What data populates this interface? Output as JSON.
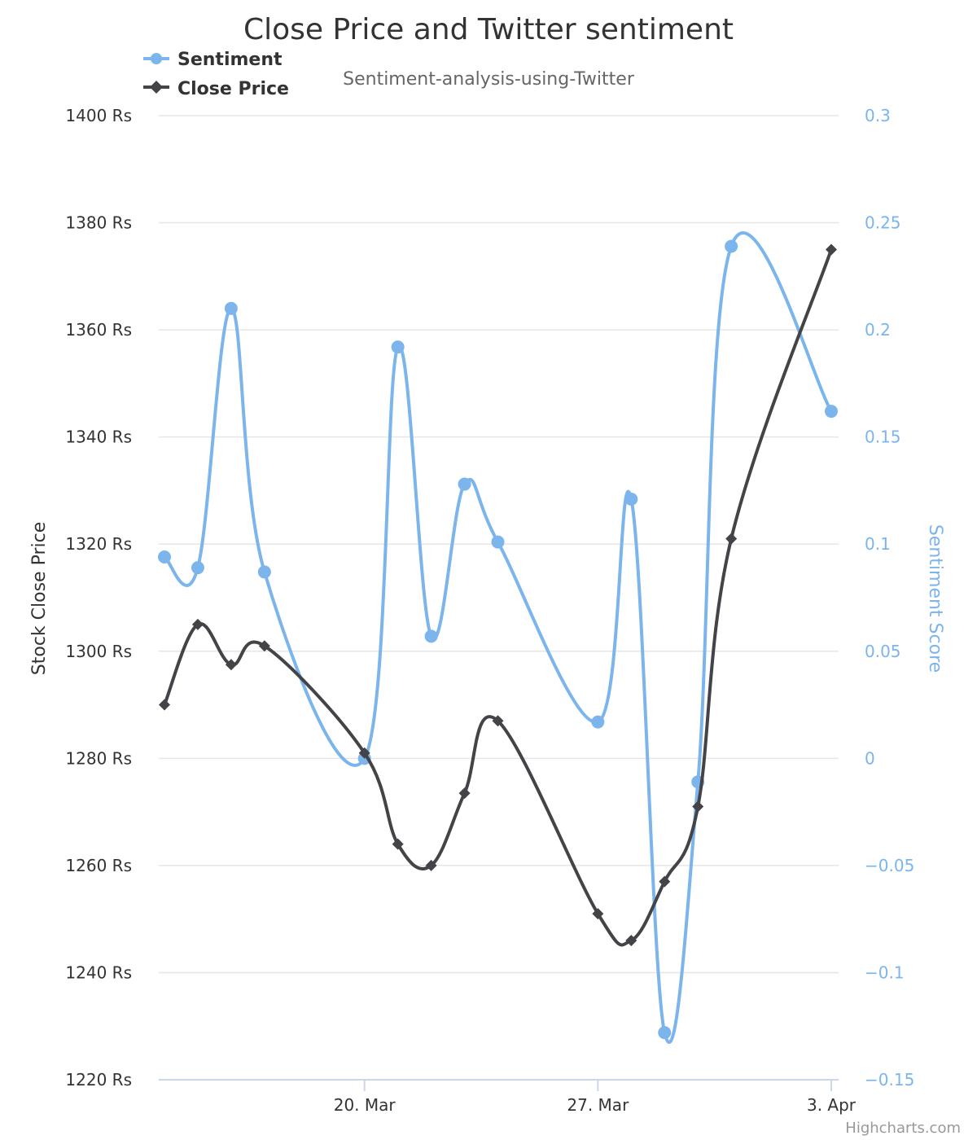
{
  "chart_data": {
    "type": "line",
    "title": "Close Price and Twitter sentiment",
    "subtitle": "Sentiment-analysis-using-Twitter",
    "credits": "Highcharts.com",
    "legend": {
      "placement": "top-left"
    },
    "grid": true,
    "x_axis": {
      "ticks": [
        {
          "label": "20. Mar",
          "date": "2018-03-20"
        },
        {
          "label": "27. Mar",
          "date": "2018-03-27"
        },
        {
          "label": "3. Apr",
          "date": "2018-04-03"
        }
      ],
      "range": [
        "2018-03-14",
        "2018-04-03"
      ]
    },
    "y_axes": [
      {
        "id": "price",
        "side": "left",
        "title": "Stock Close Price",
        "suffix": " Rs",
        "range": [
          1220,
          1400
        ],
        "ticks": [
          1220,
          1240,
          1260,
          1280,
          1300,
          1320,
          1340,
          1360,
          1380,
          1400
        ],
        "tick_labels": [
          "1220 Rs",
          "1240 Rs",
          "1260 Rs",
          "1280 Rs",
          "1300 Rs",
          "1320 Rs",
          "1340 Rs",
          "1360 Rs",
          "1380 Rs",
          "1400 Rs"
        ]
      },
      {
        "id": "sentiment",
        "side": "right",
        "title": "Sentiment Score",
        "range": [
          -0.15,
          0.3
        ],
        "ticks": [
          -0.15,
          -0.1,
          -0.05,
          0,
          0.05,
          0.1,
          0.15,
          0.2,
          0.25,
          0.3
        ],
        "tick_labels": [
          "−0.15",
          "−0.1",
          "−0.05",
          "0",
          "0.05",
          "0.1",
          "0.15",
          "0.2",
          "0.25",
          "0.3"
        ]
      }
    ],
    "series": [
      {
        "name": "Sentiment",
        "axis": "sentiment",
        "color": "#7cb5ec",
        "marker": "circle",
        "points": [
          {
            "x": "2018-03-14",
            "y": 0.094
          },
          {
            "x": "2018-03-15",
            "y": 0.089
          },
          {
            "x": "2018-03-16",
            "y": 0.21
          },
          {
            "x": "2018-03-17",
            "y": 0.087
          },
          {
            "x": "2018-03-20",
            "y": 0.0
          },
          {
            "x": "2018-03-21",
            "y": 0.192
          },
          {
            "x": "2018-03-22",
            "y": 0.057
          },
          {
            "x": "2018-03-23",
            "y": 0.128
          },
          {
            "x": "2018-03-24",
            "y": 0.101
          },
          {
            "x": "2018-03-27",
            "y": 0.017
          },
          {
            "x": "2018-03-28",
            "y": 0.121
          },
          {
            "x": "2018-03-29",
            "y": -0.128
          },
          {
            "x": "2018-03-30",
            "y": -0.011
          },
          {
            "x": "2018-03-31",
            "y": 0.239
          },
          {
            "x": "2018-04-03",
            "y": 0.162
          }
        ]
      },
      {
        "name": "Close Price",
        "axis": "price",
        "color": "#434348",
        "marker": "diamond",
        "points": [
          {
            "x": "2018-03-14",
            "y": 1290
          },
          {
            "x": "2018-03-15",
            "y": 1305
          },
          {
            "x": "2018-03-16",
            "y": 1297.5
          },
          {
            "x": "2018-03-17",
            "y": 1301
          },
          {
            "x": "2018-03-20",
            "y": 1281
          },
          {
            "x": "2018-03-21",
            "y": 1264
          },
          {
            "x": "2018-03-22",
            "y": 1260
          },
          {
            "x": "2018-03-23",
            "y": 1273.5
          },
          {
            "x": "2018-03-24",
            "y": 1287
          },
          {
            "x": "2018-03-27",
            "y": 1251
          },
          {
            "x": "2018-03-28",
            "y": 1246
          },
          {
            "x": "2018-03-29",
            "y": 1257
          },
          {
            "x": "2018-03-30",
            "y": 1271
          },
          {
            "x": "2018-03-31",
            "y": 1321
          },
          {
            "x": "2018-04-03",
            "y": 1375
          }
        ]
      }
    ]
  }
}
